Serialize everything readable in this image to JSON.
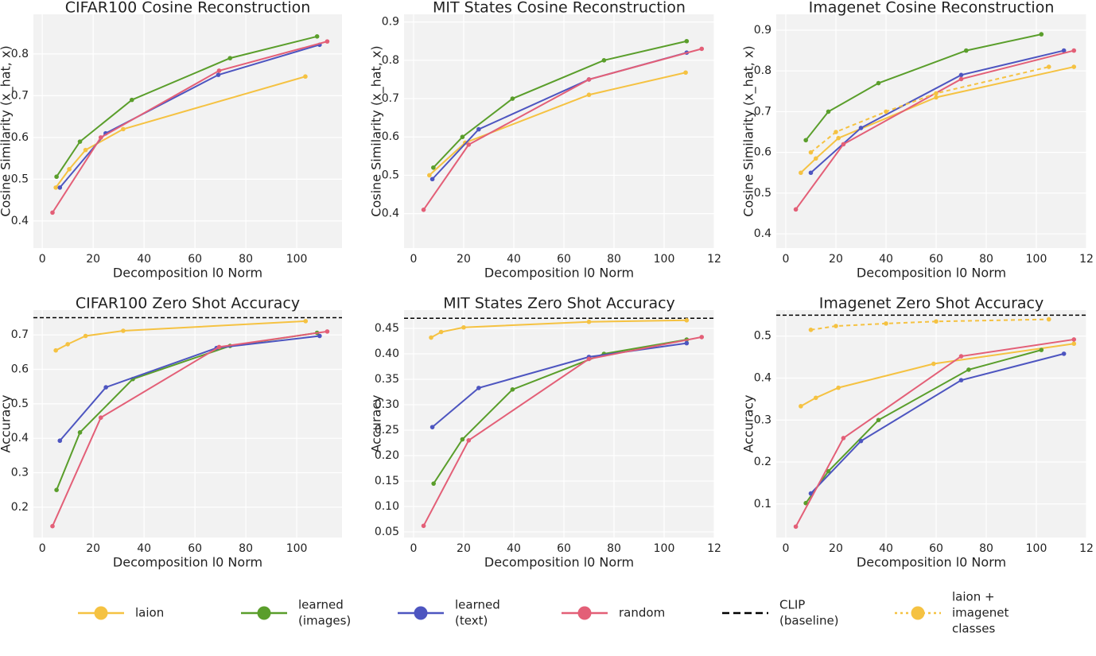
{
  "chart_data": [
    {
      "type": "line",
      "title": "CIFAR100 Cosine Reconstruction",
      "xlabel": "Decomposition l0 Norm",
      "ylabel": "Cosine Similarity (x_hat, x)",
      "xlim": [
        -3.5,
        117.8
      ],
      "ylim": [
        0.335,
        0.895
      ],
      "xticks": [
        0,
        20,
        40,
        60,
        80,
        100
      ],
      "yticks": [
        0.4,
        0.5,
        0.6,
        0.7,
        0.8
      ],
      "grid": true,
      "series": [
        {
          "color": "#f5c242",
          "dashed": false,
          "x": [
            5.3,
            10.6,
            17,
            31.8,
            103.4
          ],
          "values": [
            0.48,
            0.524,
            0.57,
            0.62,
            0.746
          ]
        },
        {
          "color": "#5a9e2b",
          "dashed": false,
          "x": [
            5.6,
            14.8,
            35.2,
            73.8,
            108
          ],
          "values": [
            0.506,
            0.59,
            0.69,
            0.79,
            0.842
          ]
        },
        {
          "color": "#4d55c0",
          "dashed": false,
          "x": [
            6.9,
            24.9,
            69.2,
            109
          ],
          "values": [
            0.48,
            0.61,
            0.75,
            0.822
          ]
        },
        {
          "color": "#e35f77",
          "dashed": false,
          "x": [
            4,
            23,
            69.5,
            112
          ],
          "values": [
            0.42,
            0.6,
            0.76,
            0.83
          ]
        }
      ]
    },
    {
      "type": "line",
      "title": "MIT States Cosine Reconstruction",
      "xlabel": "Decomposition l0 Norm",
      "ylabel": "Cosine Similarity (x_hat, x)",
      "xlim": [
        -3.8,
        120
      ],
      "ylim": [
        0.31,
        0.92
      ],
      "xticks": [
        0,
        20,
        40,
        60,
        80,
        100,
        {
          "value": 120,
          "label": "12"
        }
      ],
      "yticks": [
        0.4,
        0.5,
        0.6,
        0.7,
        0.8,
        0.9
      ],
      "grid": true,
      "series": [
        {
          "color": "#f5c242",
          "dashed": false,
          "x": [
            6.3,
            20.6,
            70,
            108.6
          ],
          "values": [
            0.5,
            0.585,
            0.71,
            0.768
          ]
        },
        {
          "color": "#5a9e2b",
          "dashed": false,
          "x": [
            7.9,
            19.5,
            39.5,
            76,
            109
          ],
          "values": [
            0.52,
            0.6,
            0.7,
            0.8,
            0.85
          ]
        },
        {
          "color": "#4d55c0",
          "dashed": false,
          "x": [
            7.5,
            26,
            70,
            109
          ],
          "values": [
            0.49,
            0.62,
            0.75,
            0.82
          ]
        },
        {
          "color": "#e35f77",
          "dashed": false,
          "x": [
            4,
            22,
            70,
            115
          ],
          "values": [
            0.41,
            0.58,
            0.75,
            0.83
          ]
        }
      ]
    },
    {
      "type": "line",
      "title": "Imagenet Cosine Reconstruction",
      "xlabel": "Decomposition l0 Norm",
      "ylabel": "Cosine Similarity (x_hat, x)",
      "xlim": [
        -3.8,
        120
      ],
      "ylim": [
        0.365,
        0.939
      ],
      "xticks": [
        0,
        20,
        40,
        60,
        80,
        100,
        {
          "value": 120,
          "label": "12"
        }
      ],
      "yticks": [
        0.4,
        0.5,
        0.6,
        0.7,
        0.8,
        0.9
      ],
      "grid": true,
      "series": [
        {
          "color": "#f5c242",
          "dashed": false,
          "x": [
            6,
            12,
            21,
            60,
            115
          ],
          "values": [
            0.55,
            0.585,
            0.635,
            0.735,
            0.81
          ]
        },
        {
          "color": "#5a9e2b",
          "dashed": false,
          "x": [
            8,
            17,
            37,
            72,
            102
          ],
          "values": [
            0.63,
            0.7,
            0.77,
            0.85,
            0.89
          ]
        },
        {
          "color": "#4d55c0",
          "dashed": false,
          "x": [
            10,
            30,
            70,
            111
          ],
          "values": [
            0.55,
            0.66,
            0.79,
            0.85
          ]
        },
        {
          "color": "#e35f77",
          "dashed": false,
          "x": [
            4,
            23,
            70,
            115
          ],
          "values": [
            0.46,
            0.62,
            0.78,
            0.85
          ]
        },
        {
          "color": "#f5c242",
          "dashed": true,
          "x": [
            10,
            20,
            40,
            60,
            105
          ],
          "values": [
            0.6,
            0.65,
            0.7,
            0.745,
            0.81
          ]
        }
      ]
    },
    {
      "type": "line",
      "title": "CIFAR100 Zero Shot Accuracy",
      "xlabel": "Decomposition l0 Norm",
      "ylabel": "Accuracy",
      "xlim": [
        -3.5,
        117.8
      ],
      "ylim": [
        0.112,
        0.772
      ],
      "xticks": [
        0,
        20,
        40,
        60,
        80,
        100
      ],
      "yticks": [
        0.2,
        0.3,
        0.4,
        0.5,
        0.6,
        0.7
      ],
      "grid": true,
      "baseline": 0.75,
      "series": [
        {
          "color": "#f5c242",
          "dashed": false,
          "x": [
            5.3,
            10,
            17,
            31.8,
            103.5
          ],
          "values": [
            0.655,
            0.673,
            0.697,
            0.712,
            0.74
          ]
        },
        {
          "color": "#5a9e2b",
          "dashed": false,
          "x": [
            5.6,
            14.8,
            35.6,
            73.8,
            108
          ],
          "values": [
            0.25,
            0.417,
            0.572,
            0.668,
            0.706
          ]
        },
        {
          "color": "#4d55c0",
          "dashed": false,
          "x": [
            6.9,
            25,
            68.5,
            109
          ],
          "values": [
            0.393,
            0.548,
            0.662,
            0.697
          ]
        },
        {
          "color": "#e35f77",
          "dashed": false,
          "x": [
            4,
            23,
            69.5,
            112
          ],
          "values": [
            0.145,
            0.46,
            0.665,
            0.71
          ]
        }
      ]
    },
    {
      "type": "line",
      "title": "MIT States Zero Shot Accuracy",
      "xlabel": "Decomposition l0 Norm",
      "ylabel": "Accuracy",
      "xlim": [
        -3.8,
        120
      ],
      "ylim": [
        0.039,
        0.486
      ],
      "xticks": [
        0,
        20,
        40,
        60,
        80,
        100,
        {
          "value": 120,
          "label": "12"
        }
      ],
      "yticks": [
        0.05,
        {
          "value": 0.1,
          "label": "0.10"
        },
        0.15,
        {
          "value": 0.2,
          "label": "0.20"
        },
        0.25,
        {
          "value": 0.3,
          "label": "0.30"
        },
        0.35,
        {
          "value": 0.4,
          "label": "0.40"
        },
        0.45
      ],
      "grid": true,
      "baseline": 0.47,
      "series": [
        {
          "color": "#f5c242",
          "dashed": false,
          "x": [
            7,
            11,
            20,
            70,
            109
          ],
          "values": [
            0.432,
            0.443,
            0.452,
            0.463,
            0.466
          ]
        },
        {
          "color": "#5a9e2b",
          "dashed": false,
          "x": [
            8,
            19.5,
            39.5,
            76,
            109
          ],
          "values": [
            0.145,
            0.232,
            0.33,
            0.4,
            0.428
          ]
        },
        {
          "color": "#4d55c0",
          "dashed": false,
          "x": [
            7.5,
            26,
            70,
            109
          ],
          "values": [
            0.256,
            0.333,
            0.394,
            0.421
          ]
        },
        {
          "color": "#e35f77",
          "dashed": false,
          "x": [
            4,
            22,
            70,
            115
          ],
          "values": [
            0.062,
            0.23,
            0.39,
            0.433
          ]
        }
      ]
    },
    {
      "type": "line",
      "title": "Imagenet Zero Shot Accuracy",
      "xlabel": "Decomposition l0 Norm",
      "ylabel": "Accuracy",
      "xlim": [
        -3.8,
        120
      ],
      "ylim": [
        0.02,
        0.562
      ],
      "xticks": [
        0,
        20,
        40,
        60,
        80,
        100,
        {
          "value": 120,
          "label": "12"
        }
      ],
      "yticks": [
        0.1,
        0.2,
        0.3,
        0.4,
        0.5
      ],
      "grid": true,
      "baseline": 0.55,
      "series": [
        {
          "color": "#f5c242",
          "dashed": false,
          "x": [
            6,
            12,
            21,
            59,
            115
          ],
          "values": [
            0.333,
            0.353,
            0.377,
            0.434,
            0.482
          ]
        },
        {
          "color": "#5a9e2b",
          "dashed": false,
          "x": [
            8,
            17,
            37,
            73,
            102
          ],
          "values": [
            0.102,
            0.178,
            0.3,
            0.42,
            0.467
          ]
        },
        {
          "color": "#4d55c0",
          "dashed": false,
          "x": [
            10,
            30,
            70,
            111
          ],
          "values": [
            0.125,
            0.25,
            0.395,
            0.458
          ]
        },
        {
          "color": "#e35f77",
          "dashed": false,
          "x": [
            4,
            23,
            70,
            115
          ],
          "values": [
            0.046,
            0.257,
            0.452,
            0.492
          ]
        },
        {
          "color": "#f5c242",
          "dashed": true,
          "x": [
            10,
            20,
            40,
            60,
            105
          ],
          "values": [
            0.515,
            0.524,
            0.53,
            0.535,
            0.54
          ]
        }
      ]
    }
  ],
  "legend": [
    {
      "lines": [
        "laion"
      ],
      "color": "#f5c242",
      "dashed": false,
      "marker": true
    },
    {
      "lines": [
        "learned",
        "(images)"
      ],
      "color": "#5a9e2b",
      "dashed": false,
      "marker": true
    },
    {
      "lines": [
        "learned",
        "(text)"
      ],
      "color": "#4d55c0",
      "dashed": false,
      "marker": true
    },
    {
      "lines": [
        "random"
      ],
      "color": "#e35f77",
      "dashed": false,
      "marker": true
    },
    {
      "lines": [
        "CLIP",
        "(baseline)"
      ],
      "color": "#000000",
      "dashed": true,
      "marker": false
    },
    {
      "lines": [
        "laion +",
        "imagenet",
        "classes"
      ],
      "color": "#f5c242",
      "dashed": true,
      "marker": true
    }
  ]
}
